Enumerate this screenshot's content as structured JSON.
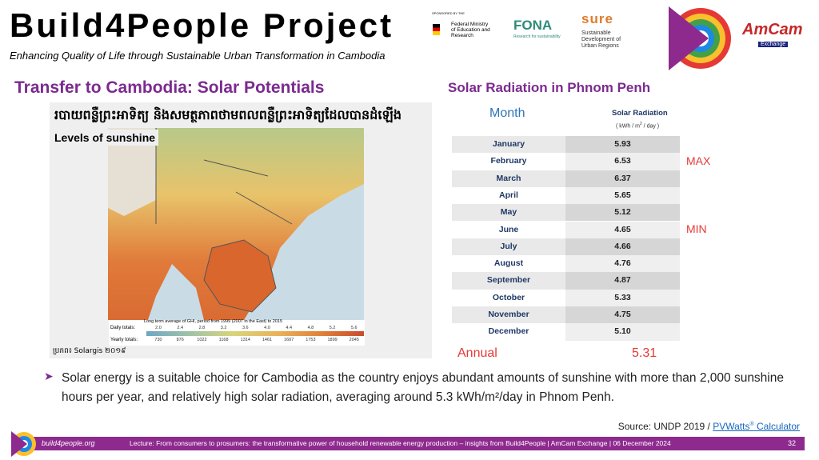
{
  "header": {
    "title": "Build4People Project",
    "subtitle": "Enhancing Quality of Life through Sustainable Urban Transformation in Cambodia",
    "logos": {
      "sponsor_caption": "SPONSORED BY THE",
      "ministry": "Federal Ministry of Education and Research",
      "fona": "FONA",
      "fona_caption": "Research for sustainability",
      "sure": "sure",
      "sure_caption": "Sustainable Development of Urban Regions",
      "amcam": "AmCam",
      "amcam_caption": "Exchange"
    }
  },
  "left": {
    "heading": "Transfer to Cambodia: Solar Potentials",
    "map": {
      "khmer_title": "របាយពន្លឺព្រះអាទិត្យ និងសមត្ថភាពថាមពលពន្លឺព្រះអាទិត្យដែលបានដំឡើង",
      "label": "Levels of sunshine",
      "legend_title": "Long term average of GHI, period from 1999 (2007 in the East) to 2015",
      "daily_label": "Daily totals:",
      "daily": [
        "2.0",
        "2.4",
        "2.8",
        "3.2",
        "3.6",
        "4.0",
        "4.4",
        "4.8",
        "5.2",
        "5.6"
      ],
      "yearly_label": "Yearly totals:",
      "yearly": [
        "730",
        "876",
        "1022",
        "1168",
        "1314",
        "1461",
        "1607",
        "1753",
        "1899",
        "2045"
      ],
      "credit": "ប្រភព៖ Solargis ២០១៩"
    }
  },
  "table": {
    "title": "Solar Radiation in Phnom Penh",
    "col_month": "Month",
    "col_value": "Solar Radiation",
    "unit_pre": "( kWh / m",
    "unit_sup": "2",
    "unit_post": " / day )",
    "rows": [
      [
        "January",
        "5.93"
      ],
      [
        "February",
        "6.53"
      ],
      [
        "March",
        "6.37"
      ],
      [
        "April",
        "5.65"
      ],
      [
        "May",
        "5.12"
      ],
      [
        "June",
        "4.65"
      ],
      [
        "July",
        "4.66"
      ],
      [
        "August",
        "4.76"
      ],
      [
        "September",
        "4.87"
      ],
      [
        "October",
        "5.33"
      ],
      [
        "November",
        "4.75"
      ],
      [
        "December",
        "5.10"
      ]
    ],
    "max_note": "MAX",
    "min_note": "MIN",
    "annual_label": "Annual",
    "annual_value": "5.31"
  },
  "bullet": "Solar energy is a suitable choice for Cambodia as the country enjoys abundant amounts of sunshine with more than 2,000 sunshine hours per year, and relatively high solar radiation, averaging around 5.3 kWh/m²/day in Phnom Penh.",
  "source": {
    "prefix": "Source: UNDP 2019 / ",
    "link": "PVWatts",
    "link_sup": "®",
    "suffix": " Calculator"
  },
  "footer": {
    "site": "build4people.org",
    "lecture": "Lecture: From consumers to prosumers: the transformative power of household renewable energy production – insights from Build4People | AmCam Exchange | 06 December 2024",
    "page": "32"
  }
}
